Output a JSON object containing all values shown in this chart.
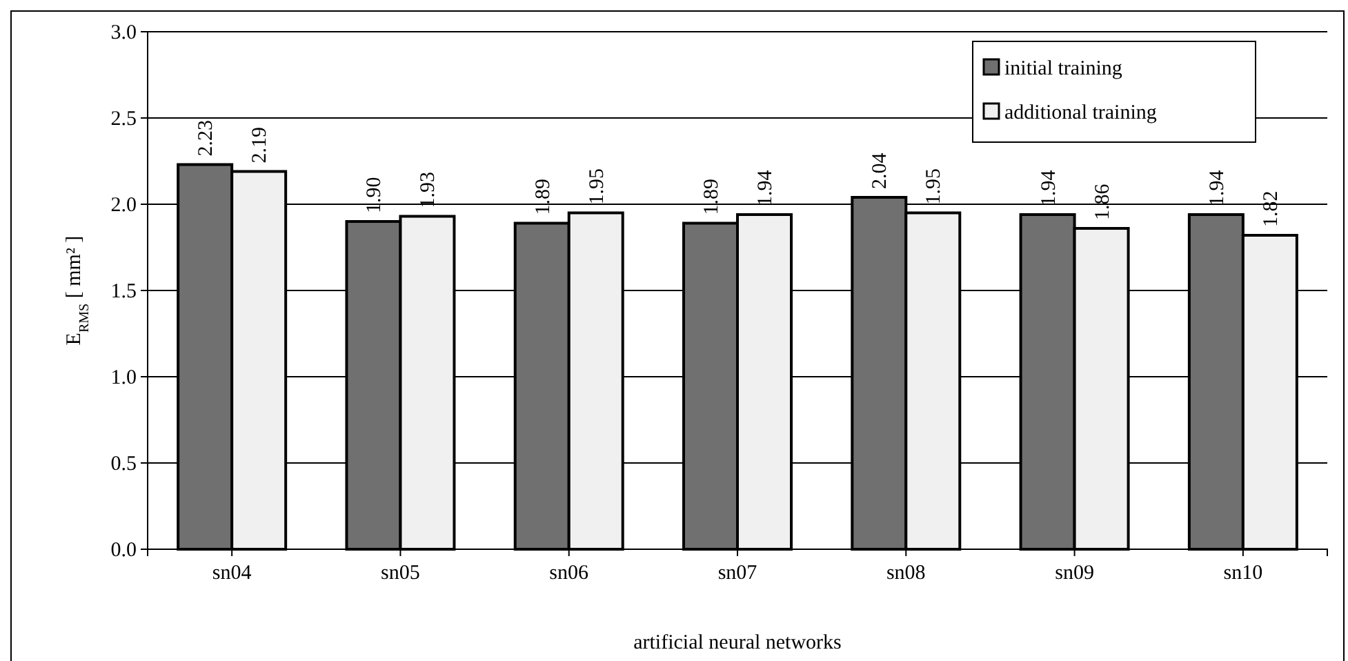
{
  "chart_data": {
    "type": "bar",
    "xlabel": "artificial neural networks",
    "ylabel": "E$_{RMS}$ [ mm² ]",
    "categories": [
      "sn04",
      "sn05",
      "sn06",
      "sn07",
      "sn08",
      "sn09",
      "sn10"
    ],
    "series": [
      {
        "name": "initial training",
        "color": "#707070",
        "values": [
          2.23,
          1.9,
          1.89,
          1.89,
          2.04,
          1.94,
          1.94
        ],
        "value_labels": [
          "2.23",
          "1.90",
          "1.89",
          "1.89",
          "2.04",
          "1.94",
          "1.94"
        ]
      },
      {
        "name": "additional training",
        "color": "#f0f0f0",
        "values": [
          2.19,
          1.93,
          1.95,
          1.94,
          1.95,
          1.86,
          1.82
        ],
        "value_labels": [
          "2.19",
          "1.93",
          "1.95",
          "1.94",
          "1.95",
          "1.86",
          "1.82"
        ]
      }
    ],
    "ylim": [
      0,
      3
    ],
    "yticks": [
      {
        "value": 0,
        "label": "0.0"
      },
      {
        "value": 0.5,
        "label": "0.5"
      },
      {
        "value": 1,
        "label": "1.0"
      },
      {
        "value": 1.5,
        "label": "1.5"
      },
      {
        "value": 2,
        "label": "2.0"
      },
      {
        "value": 2.5,
        "label": "2.5"
      },
      {
        "value": 3,
        "label": "3.0"
      }
    ],
    "grid": "y",
    "legend": "top right"
  }
}
